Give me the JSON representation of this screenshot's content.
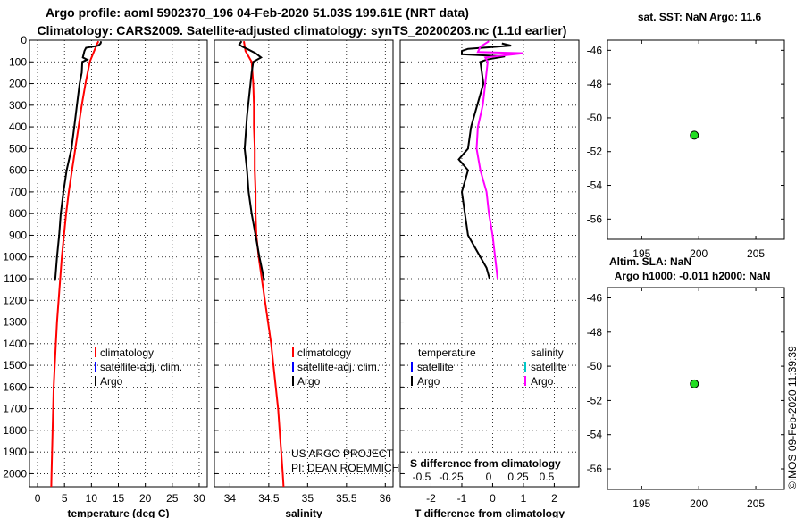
{
  "header": {
    "title_line1": "Argo profile: aoml 5902370_196 04-Feb-2020 51.03S 199.61E (NRT data)",
    "title_line2": "Climatology: CARS2009. Satellite-adjusted climatology: synTS_20200203.nc (1.1d earlier)"
  },
  "colors": {
    "climatology": "#ff0000",
    "satellite_adj": "#0000ff",
    "argo": "#000000",
    "satellite_sal": "#00c8c8",
    "salinity_diff": "#ff00ff",
    "marker": "#22dd22"
  },
  "footer": {
    "credit_line1": "US ARGO PROJECT",
    "credit_line2": "PI: DEAN ROEMMICH",
    "timestamp": "©IMOS 09-Feb-2020 11:39:39"
  },
  "chart_data": [
    {
      "id": "temperature",
      "type": "line",
      "xlabel": "temperature (deg C)",
      "xlim": [
        -1.5,
        31.5
      ],
      "xticks": [
        0,
        5,
        10,
        15,
        20,
        25,
        30
      ],
      "ylim": [
        0,
        2060
      ],
      "yticks": [
        0,
        100,
        200,
        300,
        400,
        500,
        600,
        700,
        800,
        900,
        1000,
        1100,
        1200,
        1300,
        1400,
        1500,
        1600,
        1700,
        1800,
        1900,
        2000
      ],
      "legend": {
        "entries": [
          "climatology",
          "satellite-adj. clim.",
          "Argo"
        ],
        "position": "center-right"
      },
      "series": [
        {
          "name": "climatology",
          "color_key": "climatology",
          "points": [
            [
              11.3,
              5
            ],
            [
              11.0,
              20
            ],
            [
              10.5,
              50
            ],
            [
              9.7,
              100
            ],
            [
              8.9,
              200
            ],
            [
              8.2,
              300
            ],
            [
              7.6,
              400
            ],
            [
              7.0,
              500
            ],
            [
              6.4,
              600
            ],
            [
              5.8,
              700
            ],
            [
              5.3,
              800
            ],
            [
              4.9,
              900
            ],
            [
              4.5,
              1000
            ],
            [
              4.2,
              1100
            ],
            [
              3.9,
              1200
            ],
            [
              3.6,
              1300
            ],
            [
              3.4,
              1400
            ],
            [
              3.2,
              1500
            ],
            [
              3.0,
              1600
            ],
            [
              2.9,
              1700
            ],
            [
              2.8,
              1800
            ],
            [
              2.7,
              1900
            ],
            [
              2.6,
              2000
            ],
            [
              2.55,
              2060
            ]
          ]
        },
        {
          "name": "Argo",
          "color_key": "argo",
          "points": [
            [
              11.8,
              5
            ],
            [
              11.7,
              15
            ],
            [
              11.3,
              25
            ],
            [
              10.2,
              30
            ],
            [
              9.0,
              35
            ],
            [
              8.7,
              50
            ],
            [
              8.4,
              80
            ],
            [
              9.2,
              90
            ],
            [
              8.3,
              100
            ],
            [
              8.2,
              150
            ],
            [
              7.8,
              200
            ],
            [
              7.3,
              300
            ],
            [
              6.8,
              400
            ],
            [
              6.3,
              500
            ],
            [
              5.4,
              600
            ],
            [
              4.8,
              700
            ],
            [
              4.3,
              800
            ],
            [
              4.0,
              900
            ],
            [
              3.6,
              1000
            ],
            [
              3.3,
              1100
            ],
            [
              3.2,
              1110
            ]
          ]
        }
      ]
    },
    {
      "id": "salinity",
      "type": "line",
      "xlabel": "salinity",
      "xlim": [
        33.8,
        36.1
      ],
      "xticks": [
        34,
        34.5,
        35,
        35.5,
        36
      ],
      "ylim": [
        0,
        2060
      ],
      "legend": {
        "entries": [
          "climatology",
          "satellite-adj. clim.",
          "Argo"
        ],
        "position": "center-right"
      },
      "series": [
        {
          "name": "climatology",
          "color_key": "climatology",
          "points": [
            [
              34.18,
              5
            ],
            [
              34.2,
              50
            ],
            [
              34.28,
              100
            ],
            [
              34.3,
              200
            ],
            [
              34.31,
              300
            ],
            [
              34.31,
              400
            ],
            [
              34.32,
              500
            ],
            [
              34.32,
              600
            ],
            [
              34.33,
              700
            ],
            [
              34.33,
              800
            ],
            [
              34.34,
              900
            ],
            [
              34.37,
              1000
            ],
            [
              34.41,
              1100
            ],
            [
              34.45,
              1200
            ],
            [
              34.49,
              1300
            ],
            [
              34.53,
              1400
            ],
            [
              34.56,
              1500
            ],
            [
              34.59,
              1600
            ],
            [
              34.62,
              1700
            ],
            [
              34.64,
              1800
            ],
            [
              34.66,
              1900
            ],
            [
              34.68,
              2000
            ],
            [
              34.69,
              2060
            ]
          ]
        },
        {
          "name": "Argo",
          "color_key": "argo",
          "points": [
            [
              34.15,
              5
            ],
            [
              34.12,
              20
            ],
            [
              34.16,
              30
            ],
            [
              34.22,
              40
            ],
            [
              34.33,
              60
            ],
            [
              34.4,
              80
            ],
            [
              34.3,
              100
            ],
            [
              34.28,
              150
            ],
            [
              34.25,
              250
            ],
            [
              34.22,
              350
            ],
            [
              34.19,
              500
            ],
            [
              34.22,
              600
            ],
            [
              34.24,
              700
            ],
            [
              34.28,
              800
            ],
            [
              34.33,
              900
            ],
            [
              34.38,
              1000
            ],
            [
              34.42,
              1070
            ],
            [
              34.44,
              1110
            ]
          ]
        }
      ]
    },
    {
      "id": "difference",
      "type": "line",
      "xlabel": "T difference from climatology",
      "xlim": [
        -3.0,
        2.8
      ],
      "xticks": [
        -2,
        -1,
        0,
        1,
        2
      ],
      "secondary_xlabel": "S difference from climatology",
      "secondary_xticks": [
        -0.5,
        -0.25,
        0,
        0.25,
        0.5
      ],
      "ylim": [
        0,
        2060
      ],
      "legend": {
        "headers": [
          "temperature",
          "salinity"
        ],
        "entries": [
          "satellite",
          "Argo",
          "satellite",
          "Argo"
        ],
        "position": "bottom"
      },
      "series": [
        {
          "name": "temperature Argo",
          "color_key": "argo",
          "points": [
            [
              0.3,
              15
            ],
            [
              0.6,
              25
            ],
            [
              -0.8,
              40
            ],
            [
              -1.0,
              50
            ],
            [
              -1.0,
              65
            ],
            [
              0.4,
              75
            ],
            [
              -0.2,
              90
            ],
            [
              -0.4,
              100
            ],
            [
              -0.3,
              200
            ],
            [
              -0.5,
              300
            ],
            [
              -0.7,
              400
            ],
            [
              -0.8,
              500
            ],
            [
              -1.1,
              550
            ],
            [
              -0.8,
              600
            ],
            [
              -1.0,
              700
            ],
            [
              -0.9,
              800
            ],
            [
              -0.8,
              900
            ],
            [
              -0.4,
              1000
            ],
            [
              -0.2,
              1050
            ],
            [
              -0.1,
              1100
            ]
          ]
        },
        {
          "name": "salinity Argo",
          "color_key": "salinity_diff",
          "points": [
            [
              -0.03,
              5
            ],
            [
              -0.1,
              30
            ],
            [
              -0.12,
              55
            ],
            [
              0.25,
              60
            ],
            [
              -0.06,
              80
            ],
            [
              -0.04,
              100
            ],
            [
              -0.06,
              200
            ],
            [
              -0.08,
              300
            ],
            [
              -0.12,
              400
            ],
            [
              -0.13,
              500
            ],
            [
              -0.1,
              600
            ],
            [
              -0.05,
              700
            ],
            [
              -0.03,
              800
            ],
            [
              0.0,
              900
            ],
            [
              0.02,
              1000
            ],
            [
              0.04,
              1100
            ]
          ]
        }
      ]
    },
    {
      "id": "map-sst",
      "type": "scatter",
      "title": "sat. SST: NaN Argo: 11.6",
      "xlim": [
        192,
        207.5
      ],
      "xticks": [
        195,
        200,
        205
      ],
      "ylim": [
        -57.2,
        -45.4
      ],
      "yticks": [
        -46,
        -48,
        -50,
        -52,
        -54,
        -56
      ],
      "points": [
        {
          "x": 199.61,
          "y": -51.03
        }
      ]
    },
    {
      "id": "map-sla",
      "type": "scatter",
      "title_line1": "Altim. SLA: NaN",
      "title_line2": "Argo h1000: -0.011 h2000: NaN",
      "xlim": [
        192,
        207.5
      ],
      "xticks": [
        195,
        200,
        205
      ],
      "ylim": [
        -57.2,
        -45.4
      ],
      "yticks": [
        -46,
        -48,
        -50,
        -52,
        -54,
        -56
      ],
      "points": [
        {
          "x": 199.61,
          "y": -51.03
        }
      ]
    }
  ]
}
